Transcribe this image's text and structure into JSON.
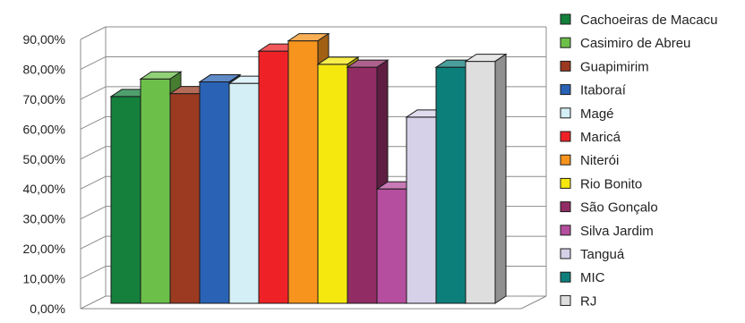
{
  "chart_data": {
    "type": "bar",
    "style": "3d-clustered",
    "categories": [
      "Cachoeiras de Macacu",
      "Casimiro de Abreu",
      "Guapimirim",
      "Itaboraí",
      "Magé",
      "Maricá",
      "Niterói",
      "Rio Bonito",
      "São Gonçalo",
      "Silva Jardim",
      "Tanguá",
      "MIC",
      "RJ"
    ],
    "values": [
      70.5,
      76.5,
      71.5,
      75.5,
      75.0,
      86.0,
      89.5,
      81.5,
      80.5,
      39.0,
      63.5,
      80.5,
      82.5
    ],
    "colors": [
      "#14803c",
      "#6cc04a",
      "#9b3a20",
      "#2a63b5",
      "#d4eff5",
      "#ee2226",
      "#f7941d",
      "#f5e80f",
      "#922c65",
      "#b54e9e",
      "#d6d0e8",
      "#0d7f7b",
      "#dedede"
    ],
    "y_ticks": [
      "0,00%",
      "10,00%",
      "20,00%",
      "30,00%",
      "40,00%",
      "50,00%",
      "60,00%",
      "70,00%",
      "80,00%",
      "90,00%"
    ],
    "ylim": [
      0,
      90
    ],
    "legend_position": "right",
    "grid": true,
    "title": "",
    "xlabel": "",
    "ylabel": ""
  }
}
